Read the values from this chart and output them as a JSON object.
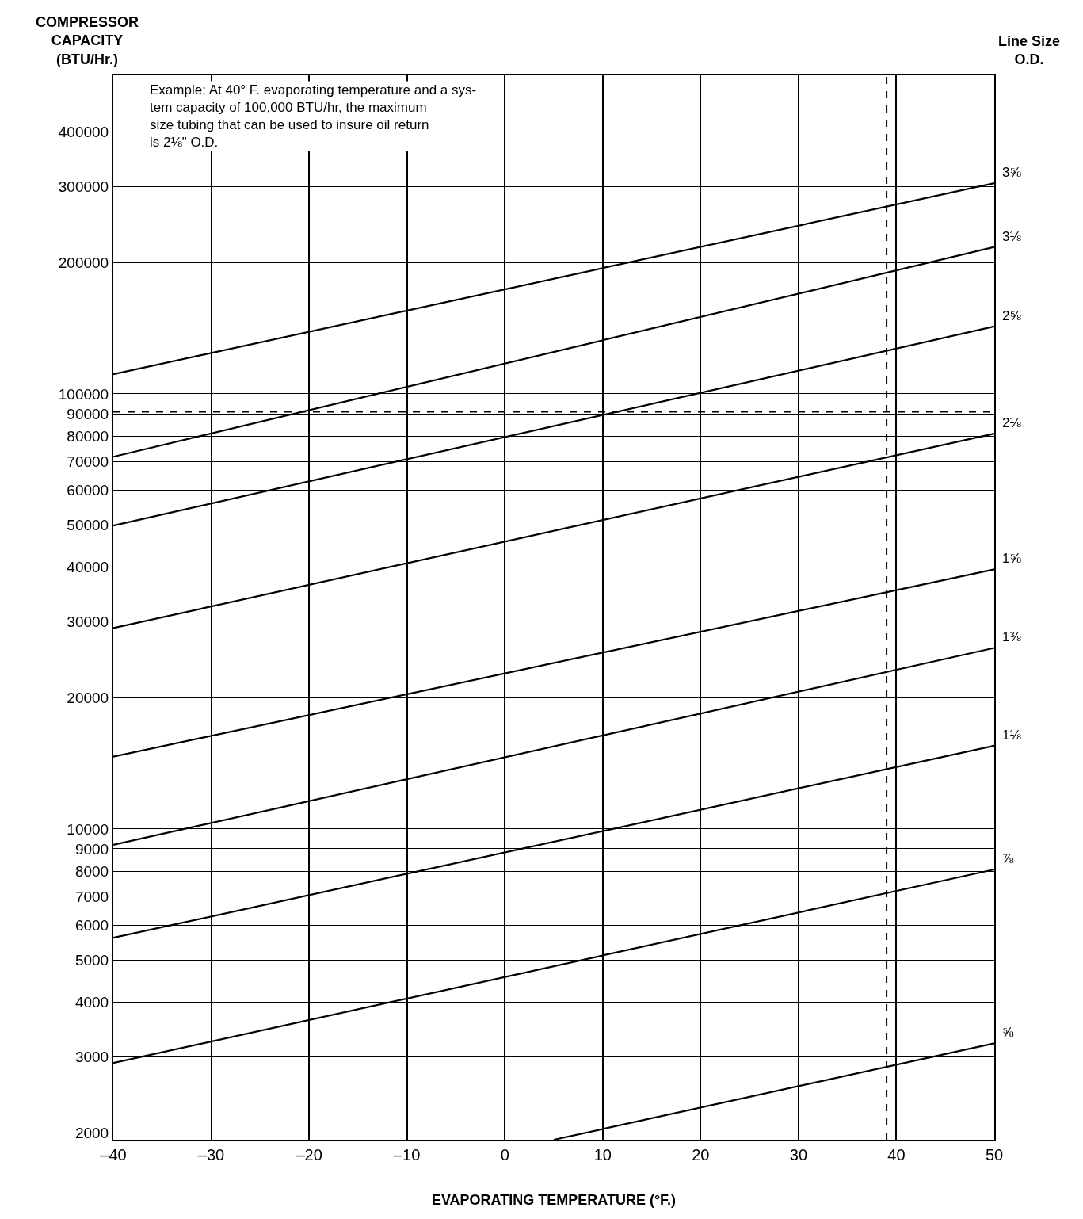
{
  "chart_data": {
    "type": "line",
    "ylabel": "COMPRESSOR\nCAPACITY\n(BTU/Hr.)",
    "xlabel": "EVAPORATING TEMPERATURE (°F.)",
    "legend_title": "Line Size\nO.D.",
    "annotations": [
      "Example: At 40° F. evaporating temperature and a sys-\ntem capacity of 100,000 BTU/hr, the maximum\nsize tubing that can be used to insure oil return\nis 2⅛\" O.D."
    ],
    "log": "y",
    "grid": true,
    "legend": false,
    "marker": "none",
    "line_style": "solid",
    "xlim": [
      -40,
      50
    ],
    "xticks": [
      {
        "value": -40,
        "label": "–40"
      },
      {
        "value": -30,
        "label": "–30"
      },
      {
        "value": -20,
        "label": "–20"
      },
      {
        "value": -10,
        "label": "–10"
      },
      0,
      10,
      20,
      30,
      40,
      50
    ],
    "ylim": [
      1930,
      540000
    ],
    "yticks": [
      2000,
      3000,
      4000,
      5000,
      6000,
      7000,
      8000,
      9000,
      10000,
      20000,
      30000,
      40000,
      50000,
      60000,
      70000,
      80000,
      90000,
      100000,
      200000,
      300000,
      400000
    ],
    "ref_lines": [
      {
        "axis": "y",
        "value": 91000,
        "line_style": "dashed",
        "color": "#000000"
      },
      {
        "axis": "x",
        "value": 39,
        "line_style": "dashed",
        "color": "#000000"
      }
    ],
    "series": [
      {
        "name": "3⅝",
        "color": "#000000",
        "x": [
          -40,
          50
        ],
        "values": [
          111000,
          305000
        ]
      },
      {
        "name": "3⅛",
        "color": "#000000",
        "x": [
          -40,
          50
        ],
        "values": [
          71700,
          217600
        ]
      },
      {
        "name": "2⅝",
        "color": "#000000",
        "x": [
          -40,
          50
        ],
        "values": [
          49800,
          142900
        ]
      },
      {
        "name": "2⅛",
        "color": "#000000",
        "x": [
          -40,
          50
        ],
        "values": [
          28950,
          81060
        ]
      },
      {
        "name": "1⅝",
        "color": "#000000",
        "x": [
          -40,
          50
        ],
        "values": [
          14660,
          39510
        ]
      },
      {
        "name": "1⅜",
        "color": "#000000",
        "x": [
          -40,
          50
        ],
        "values": [
          9190,
          26070
        ]
      },
      {
        "name": "1⅛",
        "color": "#000000",
        "x": [
          -40,
          50
        ],
        "values": [
          5620,
          15540
        ]
      },
      {
        "name": "⅞",
        "color": "#000000",
        "x": [
          -40,
          50
        ],
        "values": [
          2897,
          8070
        ]
      },
      {
        "name": "⅝",
        "color": "#000000",
        "x": [
          5,
          50
        ],
        "values": [
          1930,
          3215
        ]
      }
    ]
  }
}
